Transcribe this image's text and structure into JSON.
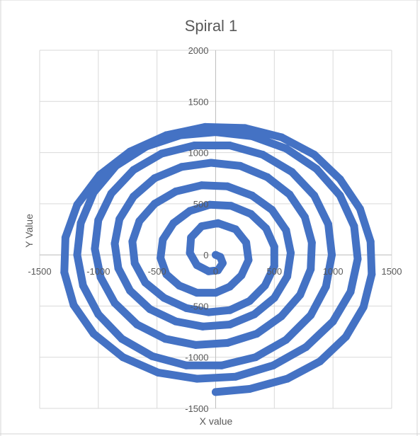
{
  "chart_data": {
    "type": "scatter",
    "title": "Spiral 1",
    "xlabel": "X value",
    "ylabel": "Y Value",
    "xlim": [
      -1500,
      1500
    ],
    "ylim": [
      -1500,
      2000
    ],
    "x_ticks": [
      -1500,
      -1000,
      -500,
      0,
      500,
      1000,
      1500
    ],
    "y_ticks": [
      -1500,
      -1000,
      -500,
      0,
      500,
      1000,
      1500,
      2000
    ],
    "grid": true,
    "legend": "none",
    "series": [
      {
        "color": "#4472C4",
        "points": [
          {
            "x": 0,
            "y": 0
          },
          {
            "x": 40,
            "y": -20
          },
          {
            "x": 60,
            "y": -80
          },
          {
            "x": 20,
            "y": -150
          },
          {
            "x": -60,
            "y": -160
          },
          {
            "x": -160,
            "y": -100
          },
          {
            "x": -220,
            "y": 20
          },
          {
            "x": -210,
            "y": 170
          },
          {
            "x": -120,
            "y": 280
          },
          {
            "x": 20,
            "y": 310
          },
          {
            "x": 170,
            "y": 250
          },
          {
            "x": 260,
            "y": 120
          },
          {
            "x": 280,
            "y": -50
          },
          {
            "x": 220,
            "y": -200
          },
          {
            "x": 120,
            "y": -310
          },
          {
            "x": 0,
            "y": -370
          },
          {
            "x": -160,
            "y": -370
          },
          {
            "x": -310,
            "y": -300
          },
          {
            "x": -420,
            "y": -190
          },
          {
            "x": -470,
            "y": -30
          },
          {
            "x": -450,
            "y": 150
          },
          {
            "x": -360,
            "y": 310
          },
          {
            "x": -220,
            "y": 430
          },
          {
            "x": -50,
            "y": 490
          },
          {
            "x": 130,
            "y": 480
          },
          {
            "x": 300,
            "y": 400
          },
          {
            "x": 430,
            "y": 260
          },
          {
            "x": 500,
            "y": 80
          },
          {
            "x": 500,
            "y": -110
          },
          {
            "x": 420,
            "y": -300
          },
          {
            "x": 290,
            "y": -450
          },
          {
            "x": 120,
            "y": -540
          },
          {
            "x": -60,
            "y": -560
          },
          {
            "x": -250,
            "y": -520
          },
          {
            "x": -440,
            "y": -420
          },
          {
            "x": -600,
            "y": -270
          },
          {
            "x": -690,
            "y": -80
          },
          {
            "x": -710,
            "y": 130
          },
          {
            "x": -650,
            "y": 330
          },
          {
            "x": -520,
            "y": 500
          },
          {
            "x": -340,
            "y": 620
          },
          {
            "x": -120,
            "y": 680
          },
          {
            "x": 100,
            "y": 670
          },
          {
            "x": 310,
            "y": 580
          },
          {
            "x": 480,
            "y": 440
          },
          {
            "x": 600,
            "y": 240
          },
          {
            "x": 640,
            "y": 20
          },
          {
            "x": 610,
            "y": -210
          },
          {
            "x": 500,
            "y": -420
          },
          {
            "x": 330,
            "y": -580
          },
          {
            "x": 120,
            "y": -680
          },
          {
            "x": -110,
            "y": -700
          },
          {
            "x": -340,
            "y": -650
          },
          {
            "x": -560,
            "y": -530
          },
          {
            "x": -730,
            "y": -350
          },
          {
            "x": -830,
            "y": -130
          },
          {
            "x": -860,
            "y": 110
          },
          {
            "x": -820,
            "y": 350
          },
          {
            "x": -700,
            "y": 570
          },
          {
            "x": -520,
            "y": 750
          },
          {
            "x": -290,
            "y": 860
          },
          {
            "x": -40,
            "y": 900
          },
          {
            "x": 210,
            "y": 870
          },
          {
            "x": 440,
            "y": 760
          },
          {
            "x": 630,
            "y": 590
          },
          {
            "x": 760,
            "y": 370
          },
          {
            "x": 820,
            "y": 120
          },
          {
            "x": 810,
            "y": -140
          },
          {
            "x": 720,
            "y": -390
          },
          {
            "x": 560,
            "y": -600
          },
          {
            "x": 350,
            "y": -770
          },
          {
            "x": 100,
            "y": -860
          },
          {
            "x": -170,
            "y": -880
          },
          {
            "x": -430,
            "y": -820
          },
          {
            "x": -670,
            "y": -680
          },
          {
            "x": -860,
            "y": -470
          },
          {
            "x": -980,
            "y": -220
          },
          {
            "x": -1030,
            "y": 60
          },
          {
            "x": -1000,
            "y": 340
          },
          {
            "x": -890,
            "y": 600
          },
          {
            "x": -700,
            "y": 830
          },
          {
            "x": -460,
            "y": 990
          },
          {
            "x": -180,
            "y": 1070
          },
          {
            "x": 120,
            "y": 1070
          },
          {
            "x": 400,
            "y": 980
          },
          {
            "x": 650,
            "y": 810
          },
          {
            "x": 840,
            "y": 580
          },
          {
            "x": 960,
            "y": 300
          },
          {
            "x": 990,
            "y": 0
          },
          {
            "x": 940,
            "y": -310
          },
          {
            "x": 810,
            "y": -590
          },
          {
            "x": 600,
            "y": -830
          },
          {
            "x": 340,
            "y": -1000
          },
          {
            "x": 50,
            "y": -1080
          },
          {
            "x": -250,
            "y": -1080
          },
          {
            "x": -540,
            "y": -990
          },
          {
            "x": -800,
            "y": -820
          },
          {
            "x": -1000,
            "y": -580
          },
          {
            "x": -1130,
            "y": -300
          },
          {
            "x": -1180,
            "y": 0
          },
          {
            "x": -1150,
            "y": 310
          },
          {
            "x": -1040,
            "y": 610
          },
          {
            "x": -850,
            "y": 870
          },
          {
            "x": -590,
            "y": 1060
          },
          {
            "x": -300,
            "y": 1170
          },
          {
            "x": 0,
            "y": 1200
          },
          {
            "x": 310,
            "y": 1160
          },
          {
            "x": 600,
            "y": 1040
          },
          {
            "x": 860,
            "y": 840
          },
          {
            "x": 1060,
            "y": 580
          },
          {
            "x": 1180,
            "y": 280
          },
          {
            "x": 1210,
            "y": -40
          },
          {
            "x": 1150,
            "y": -360
          },
          {
            "x": 1000,
            "y": -650
          },
          {
            "x": 770,
            "y": -900
          },
          {
            "x": 490,
            "y": -1080
          },
          {
            "x": 170,
            "y": -1190
          },
          {
            "x": -160,
            "y": -1210
          },
          {
            "x": -490,
            "y": -1150
          },
          {
            "x": -790,
            "y": -1000
          },
          {
            "x": -1040,
            "y": -770
          },
          {
            "x": -1210,
            "y": -490
          },
          {
            "x": -1290,
            "y": -170
          },
          {
            "x": -1280,
            "y": 170
          },
          {
            "x": -1180,
            "y": 490
          },
          {
            "x": -990,
            "y": 780
          },
          {
            "x": -730,
            "y": 1010
          },
          {
            "x": -420,
            "y": 1170
          },
          {
            "x": -90,
            "y": 1250
          },
          {
            "x": 250,
            "y": 1240
          },
          {
            "x": 560,
            "y": 1150
          },
          {
            "x": 840,
            "y": 980
          },
          {
            "x": 1060,
            "y": 740
          },
          {
            "x": 1230,
            "y": 450
          },
          {
            "x": 1320,
            "y": 130
          },
          {
            "x": 1330,
            "y": -190
          },
          {
            "x": 1260,
            "y": -510
          },
          {
            "x": 1110,
            "y": -800
          },
          {
            "x": 890,
            "y": -1040
          },
          {
            "x": 610,
            "y": -1210
          },
          {
            "x": 290,
            "y": -1310
          },
          {
            "x": 0,
            "y": -1340
          }
        ]
      }
    ]
  }
}
